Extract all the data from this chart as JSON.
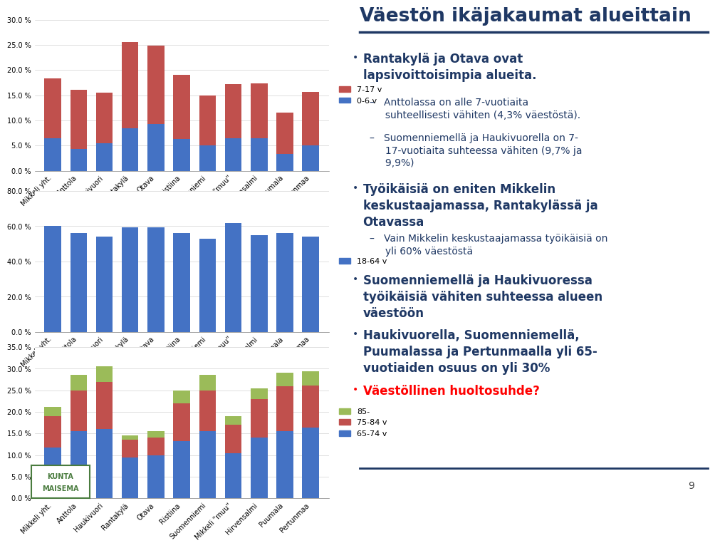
{
  "categories": [
    "Mikkeli yht.",
    "Anttola",
    "Haukivuori",
    "Rantakylä",
    "Otava",
    "Ristiina",
    "Suomenniemi",
    "Mikkeli \"muu\"",
    "Hirvensalmi",
    "Puumala",
    "Pertunmaa"
  ],
  "chart1": {
    "ylim": [
      0,
      0.3
    ],
    "yticks": [
      0.0,
      0.05,
      0.1,
      0.15,
      0.2,
      0.25,
      0.3
    ],
    "series_06": [
      0.065,
      0.043,
      0.055,
      0.085,
      0.093,
      0.063,
      0.05,
      0.065,
      0.065,
      0.033,
      0.05
    ],
    "series_717": [
      0.118,
      0.117,
      0.1,
      0.17,
      0.155,
      0.127,
      0.1,
      0.107,
      0.108,
      0.082,
      0.107
    ],
    "color_06": "#4472C4",
    "color_717": "#C0504D"
  },
  "chart2": {
    "ylim": [
      0,
      0.8
    ],
    "yticks": [
      0.0,
      0.2,
      0.4,
      0.6,
      0.8
    ],
    "series_1864": [
      0.603,
      0.56,
      0.54,
      0.593,
      0.593,
      0.56,
      0.527,
      0.617,
      0.55,
      0.56,
      0.54
    ],
    "color_1864": "#4472C4"
  },
  "chart3": {
    "ylim": [
      0,
      0.35
    ],
    "yticks": [
      0.0,
      0.05,
      0.1,
      0.15,
      0.2,
      0.25,
      0.3,
      0.35
    ],
    "series_6574": [
      0.117,
      0.155,
      0.16,
      0.095,
      0.1,
      0.133,
      0.155,
      0.105,
      0.14,
      0.155,
      0.163
    ],
    "series_7584": [
      0.073,
      0.095,
      0.11,
      0.04,
      0.04,
      0.087,
      0.095,
      0.065,
      0.09,
      0.105,
      0.098
    ],
    "series_85": [
      0.022,
      0.035,
      0.035,
      0.01,
      0.015,
      0.03,
      0.035,
      0.02,
      0.025,
      0.03,
      0.033
    ],
    "color_6574": "#4472C4",
    "color_7584": "#C0504D",
    "color_85": "#9BBB59"
  },
  "bg": "#FFFFFF",
  "title": "Väestön ikäjakaumat alueittain",
  "title_color": "#1F3864",
  "text_color": "#1F3864",
  "bullet_color": "#1F3864",
  "red_color": "#FF0000",
  "dash_color": "#555555",
  "page_num": "9",
  "logo_box_color": "#4a7c3f"
}
